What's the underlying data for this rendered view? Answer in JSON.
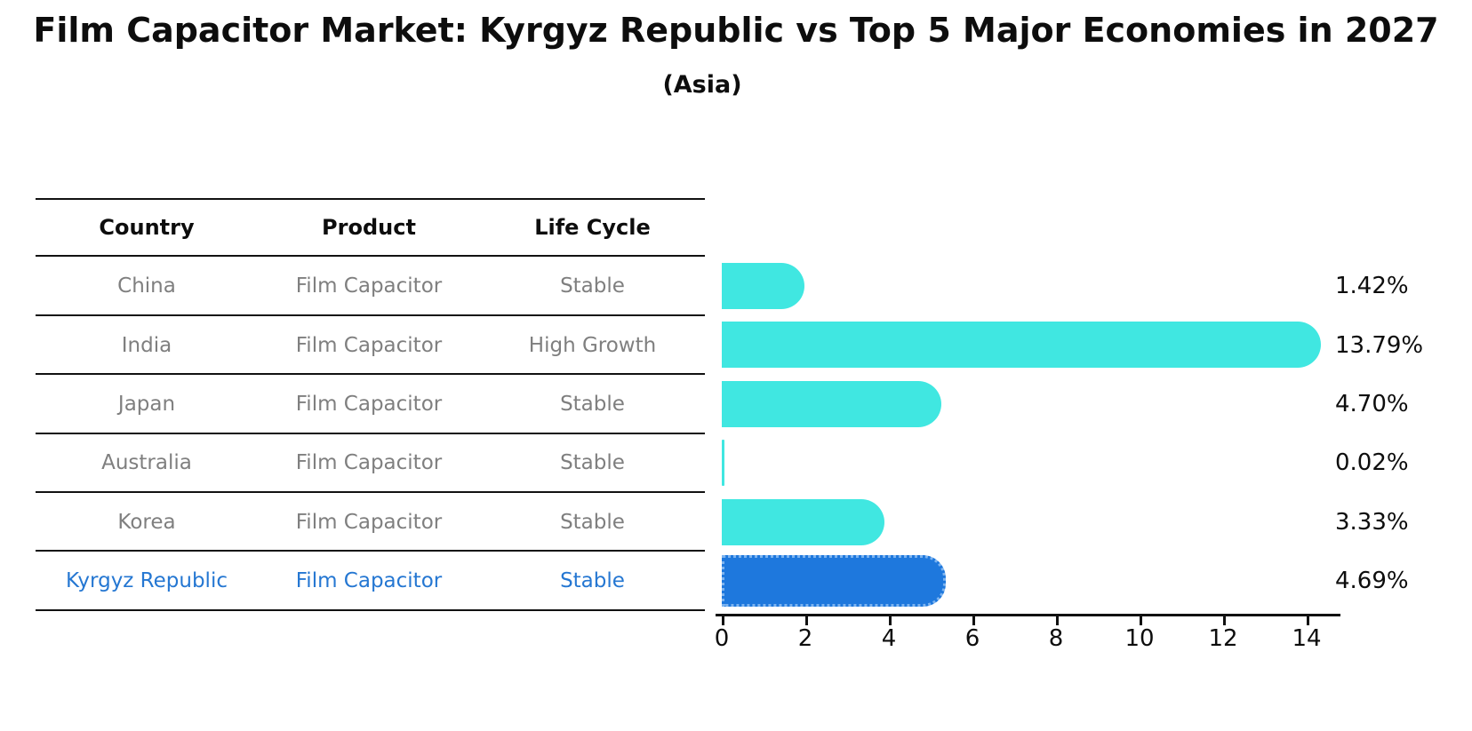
{
  "header": {
    "title": "Film Capacitor Market: Kyrgyz Republic vs Top 5 Major Economies in 2027",
    "subtitle": "(Asia)"
  },
  "table": {
    "columns": [
      "Country",
      "Product",
      "Life Cycle"
    ],
    "rows": [
      {
        "country": "China",
        "product": "Film Capacitor",
        "life_cycle": "Stable",
        "value": 1.42,
        "label": "1.42%",
        "highlight": false
      },
      {
        "country": "India",
        "product": "Film Capacitor",
        "life_cycle": "High Growth",
        "value": 13.79,
        "label": "13.79%",
        "highlight": false
      },
      {
        "country": "Japan",
        "product": "Film Capacitor",
        "life_cycle": "Stable",
        "value": 4.7,
        "label": "4.70%",
        "highlight": false
      },
      {
        "country": "Australia",
        "product": "Film Capacitor",
        "life_cycle": "Stable",
        "value": 0.02,
        "label": "0.02%",
        "highlight": false
      },
      {
        "country": "Korea",
        "product": "Film Capacitor",
        "life_cycle": "Stable",
        "value": 3.33,
        "label": "3.33%",
        "highlight": false
      },
      {
        "country": "Kyrgyz Republic",
        "product": "Film Capacitor",
        "life_cycle": "Stable",
        "value": 4.69,
        "label": "4.69%",
        "highlight": true
      }
    ]
  },
  "chart_data": {
    "type": "bar",
    "orientation": "horizontal",
    "title": "Film Capacitor Market: Kyrgyz Republic vs Top 5 Major Economies in 2027",
    "subtitle": "(Asia)",
    "categories": [
      "China",
      "India",
      "Japan",
      "Australia",
      "Korea",
      "Kyrgyz Republic"
    ],
    "values": [
      1.42,
      13.79,
      4.7,
      0.02,
      3.33,
      4.69
    ],
    "value_labels": [
      "1.42%",
      "13.79%",
      "4.70%",
      "0.02%",
      "3.33%",
      "4.69%"
    ],
    "highlight_index": 5,
    "xlabel": "",
    "ylabel": "",
    "xlim": [
      0,
      14.5
    ],
    "xticks": [
      0,
      2,
      4,
      6,
      8,
      10,
      12,
      14
    ],
    "grid": false,
    "legend_position": "none"
  },
  "colors": {
    "bar_default": "#40e7e1",
    "bar_highlight": "#1e78dd",
    "bar_highlight_dots": "#7db4f0",
    "text_highlight": "#2577d2",
    "text_muted": "#7f7f7f",
    "text_primary": "#0d0d0d"
  }
}
